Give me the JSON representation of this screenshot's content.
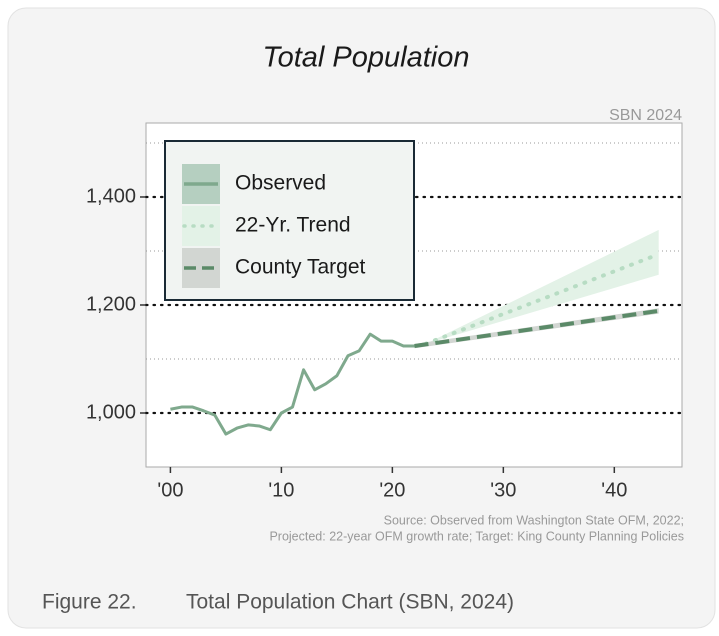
{
  "chart_data": {
    "type": "line",
    "title": "Total Population",
    "annotation": "SBN 2024",
    "source": [
      "Source: Observed from Washington State OFM, 2022;",
      "Projected: 22-year OFM growth rate; Target: King County Planning Policies"
    ],
    "xlim": [
      -2.2,
      46.1
    ],
    "xticks": [
      {
        "value": 0,
        "label": "'00"
      },
      {
        "value": 10,
        "label": "'10"
      },
      {
        "value": 20,
        "label": "'20"
      },
      {
        "value": 30,
        "label": "'30"
      },
      {
        "value": 40,
        "label": "'40"
      }
    ],
    "ylim": [
      900,
      1537
    ],
    "yticks": [
      {
        "value": 1000,
        "label": "1,000"
      },
      {
        "value": 1200,
        "label": "1,200"
      },
      {
        "value": 1400,
        "label": "1,400"
      }
    ],
    "minor_yticks": [
      1100,
      1300,
      1500
    ],
    "grid": true,
    "legend": "upper left",
    "series": [
      {
        "name": "Observed",
        "color": "#7fa98d",
        "style": "solid",
        "x": [
          0,
          1,
          2,
          3,
          4,
          5,
          6,
          7,
          8,
          9,
          10,
          11,
          12,
          13,
          14,
          15,
          16,
          17,
          18,
          19,
          20,
          21,
          22,
          23
        ],
        "values": [
          1007,
          1011,
          1011,
          1004,
          996,
          961,
          972,
          978,
          976,
          969,
          1000,
          1011,
          1080,
          1043,
          1054,
          1069,
          1106,
          1115,
          1146,
          1133,
          1133,
          1124,
          1124,
          1128
        ]
      },
      {
        "name": "22-Yr. Trend",
        "color": "#b7dcc3",
        "band_color": "#e3f2e7",
        "style": "dotted",
        "x": [
          23,
          44
        ],
        "values": [
          1128,
          1294
        ],
        "band_lower": [
          1128,
          1256
        ],
        "band_upper": [
          1128,
          1339
        ]
      },
      {
        "name": "County Target",
        "color": "#5b8a68",
        "band_color": "#d2d6d2",
        "style": "dashed",
        "x": [
          22,
          44
        ],
        "values": [
          1124,
          1189
        ],
        "band_lower": [
          1120,
          1184
        ],
        "band_upper": [
          1128,
          1194
        ]
      }
    ]
  },
  "caption": {
    "number": "Figure 22.",
    "text": "Total Population Chart (SBN, 2024)"
  }
}
